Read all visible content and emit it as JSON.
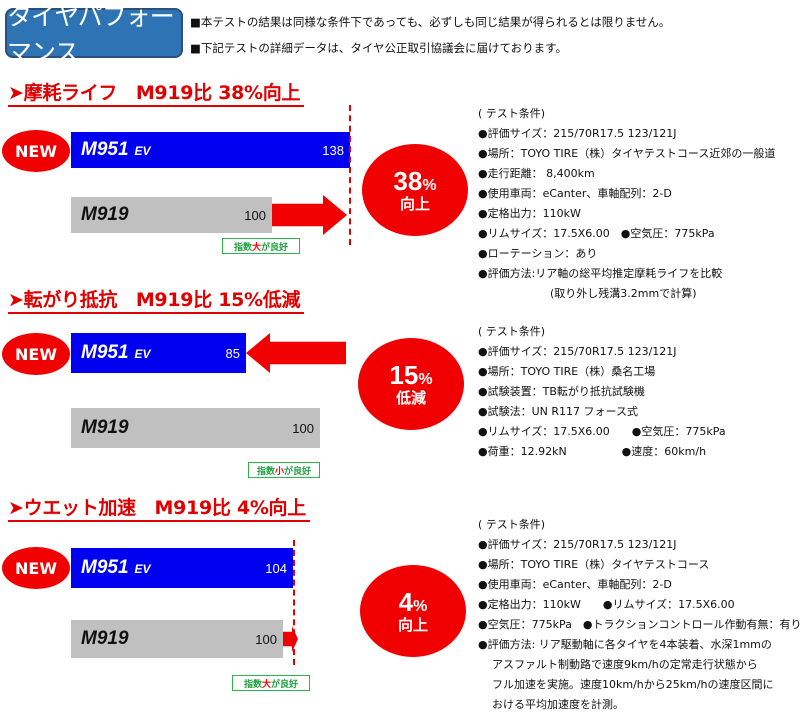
{
  "title": "タイヤパフォーマンス",
  "notes": [
    "■本テストの結果は同様な条件下であっても、必ずしも同じ結果が得られるとは限りません。",
    "■下記テストの詳細データは、タイヤ公正取引協議会に届けております。"
  ],
  "colors": {
    "new_tire": "#0000f0",
    "old_tire": "#c0c0c0",
    "accent": "#f00000",
    "title_bg": "#2e74b5",
    "badge": "#2fb34f"
  },
  "new_label": "NEW",
  "chart_data": [
    {
      "type": "bar",
      "title": "➤摩耗ライフ　M919比 38%向上",
      "categories": [
        "M951 EV",
        "M919"
      ],
      "values": [
        138,
        100
      ],
      "result": {
        "pct": "38",
        "unit": "%",
        "label": "向上"
      },
      "badge": {
        "pre": "指数",
        "key": "大",
        "post": "が良好"
      },
      "conditions": [
        "( テスト条件)",
        "●評価サイズ：215/70R17.5 123/121J",
        "●場所：TOYO TIRE（株）タイヤテストコース近郊の一般道",
        "●走行距離： 8,400km",
        "●使用車両：eCanter、車軸配列：2-D",
        "●定格出力：110kW",
        "●リムサイズ：17.5X6.00　●空気圧：775kPa",
        "●ローテーション：あり",
        "●評価方法:リア軸の総平均推定摩耗ライフを比較",
        "(取り外し残溝3.2mmで計算)"
      ]
    },
    {
      "type": "bar",
      "title": "➤転がり抵抗　M919比 15%低減",
      "categories": [
        "M951 EV",
        "M919"
      ],
      "values": [
        85,
        100
      ],
      "result": {
        "pct": "15",
        "unit": "%",
        "label": "低減"
      },
      "badge": {
        "pre": "指数",
        "key": "小",
        "post": "が良好"
      },
      "conditions": [
        "( テスト条件)",
        "●評価サイズ：215/70R17.5 123/121J",
        "●場所：TOYO TIRE（株）桑名工場",
        "●試験装置：TB転がり抵抗試験機",
        "●試験法：UN R117 フォース式",
        "●リムサイズ：17.5X6.00　　●空気圧：775kPa",
        "●荷重：12.92kN　　　　　●速度：60km/h"
      ]
    },
    {
      "type": "bar",
      "title": "➤ウエット加速　M919比 4%向上",
      "categories": [
        "M951 EV",
        "M919"
      ],
      "values": [
        104,
        100
      ],
      "result": {
        "pct": "4",
        "unit": "%",
        "label": "向上"
      },
      "badge": {
        "pre": "指数",
        "key": "大",
        "post": "が良好"
      },
      "conditions": [
        "( テスト条件)",
        "●評価サイズ：215/70R17.5 123/121J",
        "●場所：TOYO TIRE（株）タイヤテストコース",
        "●使用車両：eCanter、車軸配列：2-D",
        "●定格出力：110kW　　●リムサイズ：17.5X6.00",
        "●空気圧：775kPa　●トラクションコントロール作動有無：有り",
        "●評価方法: リア駆動軸に各タイヤを4本装着、水深1mmの",
        "アスファルト制動路で速度9km/hの定常走行状態から",
        "フル加速を実施。速度10km/hから25km/hの速度区間に",
        "おける平均加速度を計測。"
      ]
    }
  ]
}
